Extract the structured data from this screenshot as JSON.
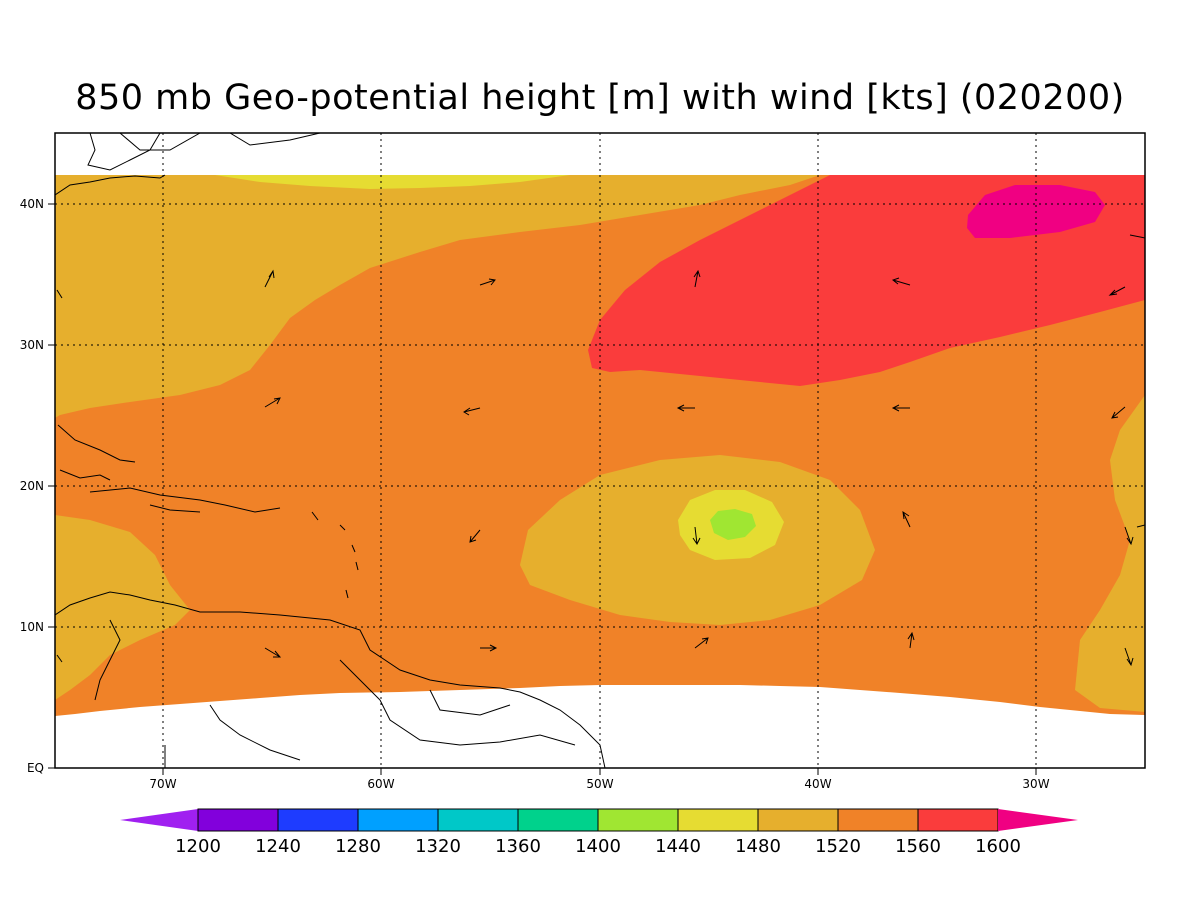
{
  "title": "850 mb Geo-potential height [m] with wind [kts] (020200)",
  "lat_labels": [
    "EQ",
    "10N",
    "20N",
    "30N",
    "40N"
  ],
  "lon_labels": [
    "70W",
    "60W",
    "50W",
    "40W",
    "30W"
  ],
  "colorbar": {
    "levels": [
      "1200",
      "1240",
      "1280",
      "1320",
      "1360",
      "1400",
      "1440",
      "1480",
      "1520",
      "1560",
      "1600"
    ],
    "colors": [
      "#a020f0",
      "#8200dc",
      "#1e3cff",
      "#00a0ff",
      "#00c8c8",
      "#00d28c",
      "#a0e632",
      "#e6dc32",
      "#e6af2d",
      "#f08228",
      "#fa3c3c",
      "#f00082"
    ]
  },
  "fill_colors": {
    "c1480": "#e6dc32",
    "c1520": "#e6af2d",
    "c1560": "#f08228",
    "c1600": "#fa3c3c",
    "c1640": "#f00082",
    "c1440": "#a0e632"
  }
}
